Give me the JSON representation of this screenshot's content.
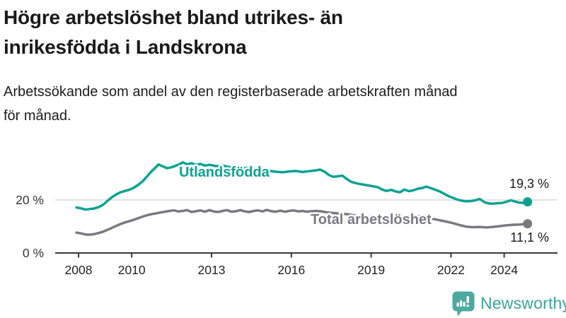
{
  "header": {
    "title_lines": [
      "Högre arbetslöshet bland utrikes- än",
      "inrikesfödda i Landskrona"
    ],
    "subtitle_lines": [
      "Arbetssökande som andel av den registerbaserade arbetskraften månad",
      "för månad."
    ]
  },
  "chart_data": {
    "type": "line",
    "title": "Högre arbetslöshet bland utrikes- än inrikesfödda i Landskrona",
    "subtitle": "Arbetssökande som andel av den registerbaserade arbetskraften månad för månad.",
    "unit": "%",
    "grid": "single-horizontal-gridline-at-20",
    "legend_position": "inline-labels-on-lines",
    "x_axis": {
      "ticks": [
        2008,
        2010,
        2013,
        2016,
        2019,
        2022,
        2024
      ],
      "tick_labels": [
        "2008",
        "2010",
        "2013",
        "2016",
        "2019",
        "2022",
        "2024"
      ],
      "range_years": [
        2007.1,
        2025.3
      ]
    },
    "y_axis": {
      "ticks": [
        0,
        20
      ],
      "tick_labels": [
        "0 %",
        "20 %"
      ],
      "range": [
        0,
        38
      ]
    },
    "series": [
      {
        "name": "Utlandsfödda",
        "color": "#0ba293",
        "end_value": 19.3,
        "end_label": "19,3 %",
        "points": [
          [
            2007.92,
            17.2
          ],
          [
            2008.08,
            16.9
          ],
          [
            2008.25,
            16.4
          ],
          [
            2008.42,
            16.6
          ],
          [
            2008.58,
            16.8
          ],
          [
            2008.75,
            17.3
          ],
          [
            2008.92,
            18.2
          ],
          [
            2009.08,
            19.6
          ],
          [
            2009.25,
            21.0
          ],
          [
            2009.42,
            22.1
          ],
          [
            2009.58,
            22.9
          ],
          [
            2009.75,
            23.4
          ],
          [
            2009.92,
            23.9
          ],
          [
            2010.08,
            24.6
          ],
          [
            2010.25,
            25.7
          ],
          [
            2010.42,
            27.1
          ],
          [
            2010.58,
            28.9
          ],
          [
            2010.75,
            30.8
          ],
          [
            2010.92,
            32.4
          ],
          [
            2011.0,
            33.3
          ],
          [
            2011.17,
            32.6
          ],
          [
            2011.33,
            31.9
          ],
          [
            2011.5,
            32.3
          ],
          [
            2011.67,
            32.9
          ],
          [
            2011.83,
            33.6
          ],
          [
            2011.92,
            34.1
          ],
          [
            2012.08,
            33.4
          ],
          [
            2012.25,
            33.8
          ],
          [
            2012.42,
            33.1
          ],
          [
            2012.58,
            33.5
          ],
          [
            2012.75,
            32.9
          ],
          [
            2012.92,
            33.2
          ],
          [
            2013.17,
            32.7
          ],
          [
            2013.42,
            32.9
          ],
          [
            2013.67,
            32.3
          ],
          [
            2013.92,
            32.5
          ],
          [
            2014.17,
            31.9
          ],
          [
            2014.42,
            32.1
          ],
          [
            2014.67,
            31.5
          ],
          [
            2014.92,
            31.2
          ],
          [
            2015.17,
            30.9
          ],
          [
            2015.42,
            30.6
          ],
          [
            2015.67,
            30.4
          ],
          [
            2015.92,
            30.7
          ],
          [
            2016.17,
            30.9
          ],
          [
            2016.42,
            30.5
          ],
          [
            2016.67,
            30.8
          ],
          [
            2016.92,
            31.1
          ],
          [
            2017.08,
            31.4
          ],
          [
            2017.25,
            30.6
          ],
          [
            2017.42,
            29.3
          ],
          [
            2017.58,
            28.7
          ],
          [
            2017.75,
            28.9
          ],
          [
            2017.92,
            29.1
          ],
          [
            2018.08,
            27.9
          ],
          [
            2018.25,
            26.8
          ],
          [
            2018.42,
            26.3
          ],
          [
            2018.58,
            26.0
          ],
          [
            2018.75,
            25.7
          ],
          [
            2018.92,
            25.4
          ],
          [
            2019.08,
            25.1
          ],
          [
            2019.25,
            24.8
          ],
          [
            2019.42,
            23.9
          ],
          [
            2019.58,
            23.4
          ],
          [
            2019.75,
            23.8
          ],
          [
            2019.92,
            23.2
          ],
          [
            2020.08,
            22.9
          ],
          [
            2020.25,
            23.9
          ],
          [
            2020.42,
            23.3
          ],
          [
            2020.58,
            23.6
          ],
          [
            2020.75,
            24.2
          ],
          [
            2020.92,
            24.5
          ],
          [
            2021.08,
            25.0
          ],
          [
            2021.25,
            24.4
          ],
          [
            2021.42,
            23.8
          ],
          [
            2021.58,
            23.2
          ],
          [
            2021.75,
            22.3
          ],
          [
            2021.92,
            21.4
          ],
          [
            2022.08,
            20.8
          ],
          [
            2022.25,
            20.1
          ],
          [
            2022.42,
            19.7
          ],
          [
            2022.58,
            19.5
          ],
          [
            2022.75,
            19.6
          ],
          [
            2022.92,
            19.9
          ],
          [
            2023.08,
            20.4
          ],
          [
            2023.25,
            19.2
          ],
          [
            2023.42,
            18.7
          ],
          [
            2023.58,
            18.6
          ],
          [
            2023.75,
            18.8
          ],
          [
            2023.92,
            18.9
          ],
          [
            2024.08,
            19.3
          ],
          [
            2024.25,
            19.9
          ],
          [
            2024.42,
            19.4
          ],
          [
            2024.58,
            19.0
          ],
          [
            2024.75,
            18.9
          ],
          [
            2024.88,
            19.3
          ]
        ]
      },
      {
        "name": "Total arbetslöshet",
        "color": "#7b7980",
        "end_value": 11.1,
        "end_label": "11,1 %",
        "points": [
          [
            2007.92,
            7.8
          ],
          [
            2008.08,
            7.5
          ],
          [
            2008.25,
            7.1
          ],
          [
            2008.42,
            7.0
          ],
          [
            2008.58,
            7.2
          ],
          [
            2008.75,
            7.6
          ],
          [
            2008.92,
            8.1
          ],
          [
            2009.08,
            8.8
          ],
          [
            2009.25,
            9.5
          ],
          [
            2009.42,
            10.3
          ],
          [
            2009.58,
            11.0
          ],
          [
            2009.75,
            11.6
          ],
          [
            2009.92,
            12.1
          ],
          [
            2010.08,
            12.6
          ],
          [
            2010.25,
            13.2
          ],
          [
            2010.42,
            13.8
          ],
          [
            2010.58,
            14.3
          ],
          [
            2010.75,
            14.7
          ],
          [
            2010.92,
            15.0
          ],
          [
            2011.08,
            15.3
          ],
          [
            2011.25,
            15.6
          ],
          [
            2011.42,
            15.9
          ],
          [
            2011.58,
            16.1
          ],
          [
            2011.75,
            15.7
          ],
          [
            2011.92,
            15.9
          ],
          [
            2012.08,
            16.2
          ],
          [
            2012.25,
            15.5
          ],
          [
            2012.42,
            15.8
          ],
          [
            2012.58,
            16.1
          ],
          [
            2012.75,
            15.6
          ],
          [
            2012.92,
            16.2
          ],
          [
            2013.08,
            15.7
          ],
          [
            2013.25,
            15.5
          ],
          [
            2013.42,
            15.9
          ],
          [
            2013.58,
            16.2
          ],
          [
            2013.75,
            15.6
          ],
          [
            2013.92,
            15.8
          ],
          [
            2014.08,
            16.2
          ],
          [
            2014.25,
            15.7
          ],
          [
            2014.42,
            15.5
          ],
          [
            2014.58,
            15.9
          ],
          [
            2014.75,
            16.1
          ],
          [
            2014.92,
            15.7
          ],
          [
            2015.08,
            16.3
          ],
          [
            2015.25,
            15.8
          ],
          [
            2015.42,
            15.6
          ],
          [
            2015.58,
            16.0
          ],
          [
            2015.75,
            15.6
          ],
          [
            2015.92,
            15.9
          ],
          [
            2016.08,
            16.1
          ],
          [
            2016.25,
            15.7
          ],
          [
            2016.42,
            15.9
          ],
          [
            2016.58,
            15.6
          ],
          [
            2016.75,
            15.8
          ],
          [
            2016.92,
            15.9
          ],
          [
            2017.08,
            15.8
          ],
          [
            2017.33,
            15.4
          ],
          [
            2017.58,
            15.1
          ],
          [
            2017.83,
            14.9
          ],
          [
            2018.08,
            14.7
          ],
          [
            2018.33,
            14.3
          ],
          [
            2018.58,
            14.0
          ],
          [
            2018.83,
            13.8
          ],
          [
            2019.08,
            13.6
          ],
          [
            2019.33,
            13.3
          ],
          [
            2019.58,
            13.1
          ],
          [
            2019.83,
            13.2
          ],
          [
            2020.08,
            13.5
          ],
          [
            2020.33,
            13.9
          ],
          [
            2020.58,
            14.1
          ],
          [
            2020.83,
            13.8
          ],
          [
            2021.08,
            13.4
          ],
          [
            2021.33,
            12.9
          ],
          [
            2021.58,
            12.4
          ],
          [
            2021.83,
            11.9
          ],
          [
            2022.08,
            11.3
          ],
          [
            2022.33,
            10.6
          ],
          [
            2022.58,
            10.0
          ],
          [
            2022.83,
            9.8
          ],
          [
            2023.08,
            9.9
          ],
          [
            2023.33,
            9.7
          ],
          [
            2023.58,
            9.9
          ],
          [
            2023.83,
            10.2
          ],
          [
            2024.08,
            10.5
          ],
          [
            2024.33,
            10.7
          ],
          [
            2024.58,
            10.8
          ],
          [
            2024.88,
            11.1
          ]
        ]
      }
    ]
  },
  "footer": {
    "brand": "Newsworthy",
    "brand_color": "#3ba49b",
    "logo_color": "#4ba9a1",
    "logo_icon": "bar-chart-speech-bubble-icon"
  }
}
